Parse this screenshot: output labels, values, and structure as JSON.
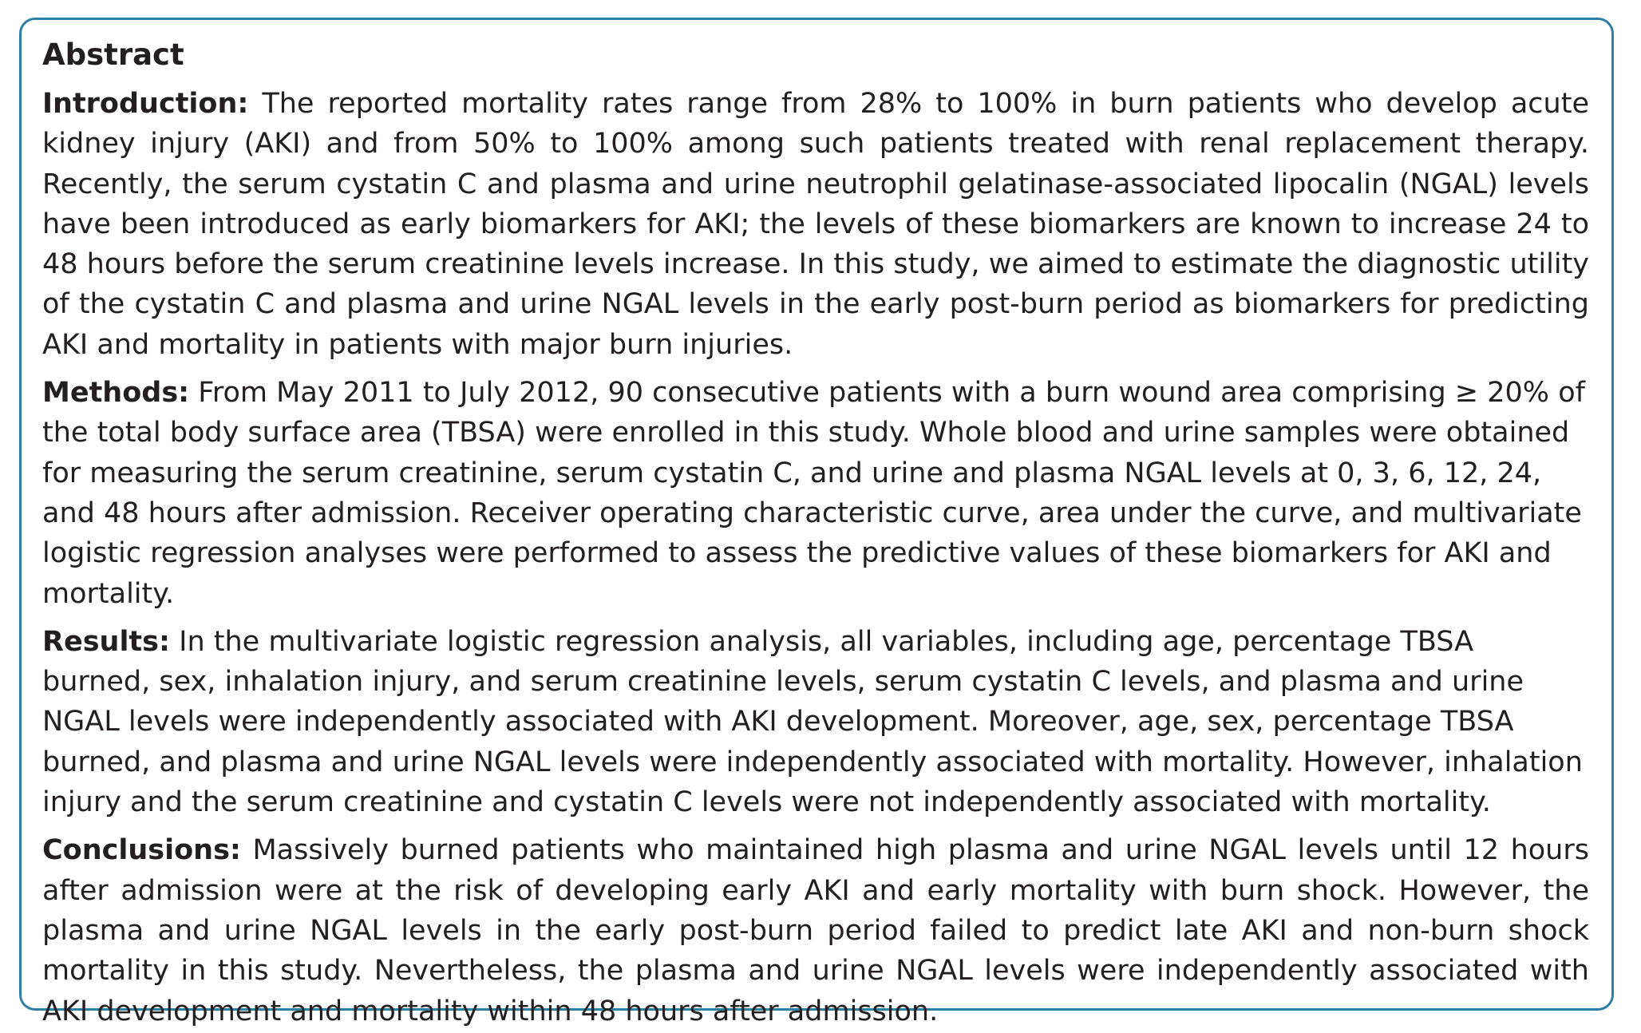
{
  "abstract": {
    "heading": "Abstract",
    "sections": {
      "introduction": {
        "label": "Introduction:",
        "text": "The reported mortality rates range from 28% to 100% in burn patients who develop acute kidney injury (AKI) and from 50% to 100% among such patients treated with renal replacement therapy. Recently, the serum cystatin C and plasma and urine neutrophil gelatinase-associated lipocalin (NGAL) levels have been introduced as early biomarkers for AKI; the levels of these biomarkers are known to increase 24 to 48 hours before the serum creatinine levels increase. In this study, we aimed to estimate the diagnostic utility of the cystatin C and plasma and urine NGAL levels in the early post-burn period as biomarkers for predicting AKI and mortality in patients with major burn injuries."
      },
      "methods": {
        "label": "Methods:",
        "text": "From May 2011 to July 2012, 90 consecutive patients with a burn wound area comprising ≥ 20% of the total body surface area (TBSA) were enrolled in this study. Whole blood and urine samples were obtained for measuring the serum creatinine, serum cystatin C, and urine and plasma NGAL levels at 0, 3, 6, 12, 24, and 48 hours after admission. Receiver operating characteristic curve, area under the curve, and multivariate logistic regression analyses were performed to assess the predictive values of these biomarkers for AKI and mortality."
      },
      "results": {
        "label": "Results:",
        "text": "In the multivariate logistic regression analysis, all variables, including age, percentage TBSA burned, sex, inhalation injury, and serum creatinine levels, serum cystatin C levels, and plasma and urine NGAL levels were independently associated with AKI development. Moreover, age, sex, percentage TBSA burned, and plasma and urine NGAL levels were independently associated with mortality. However, inhalation injury and the serum creatinine and cystatin C levels were not independently associated with mortality."
      },
      "conclusions": {
        "label": "Conclusions:",
        "text": "Massively burned patients who maintained high plasma and urine NGAL levels until 12 hours after admission were at the risk of developing early AKI and early mortality with burn shock. However, the plasma and urine NGAL levels in the early post-burn period failed to predict late AKI and non-burn shock mortality in this study. Nevertheless, the plasma and urine NGAL levels were independently associated with AKI development and mortality within 48 hours after admission."
      }
    }
  },
  "colors": {
    "border": "#2f7fa3",
    "text": "#231f20",
    "background": "#ffffff"
  }
}
